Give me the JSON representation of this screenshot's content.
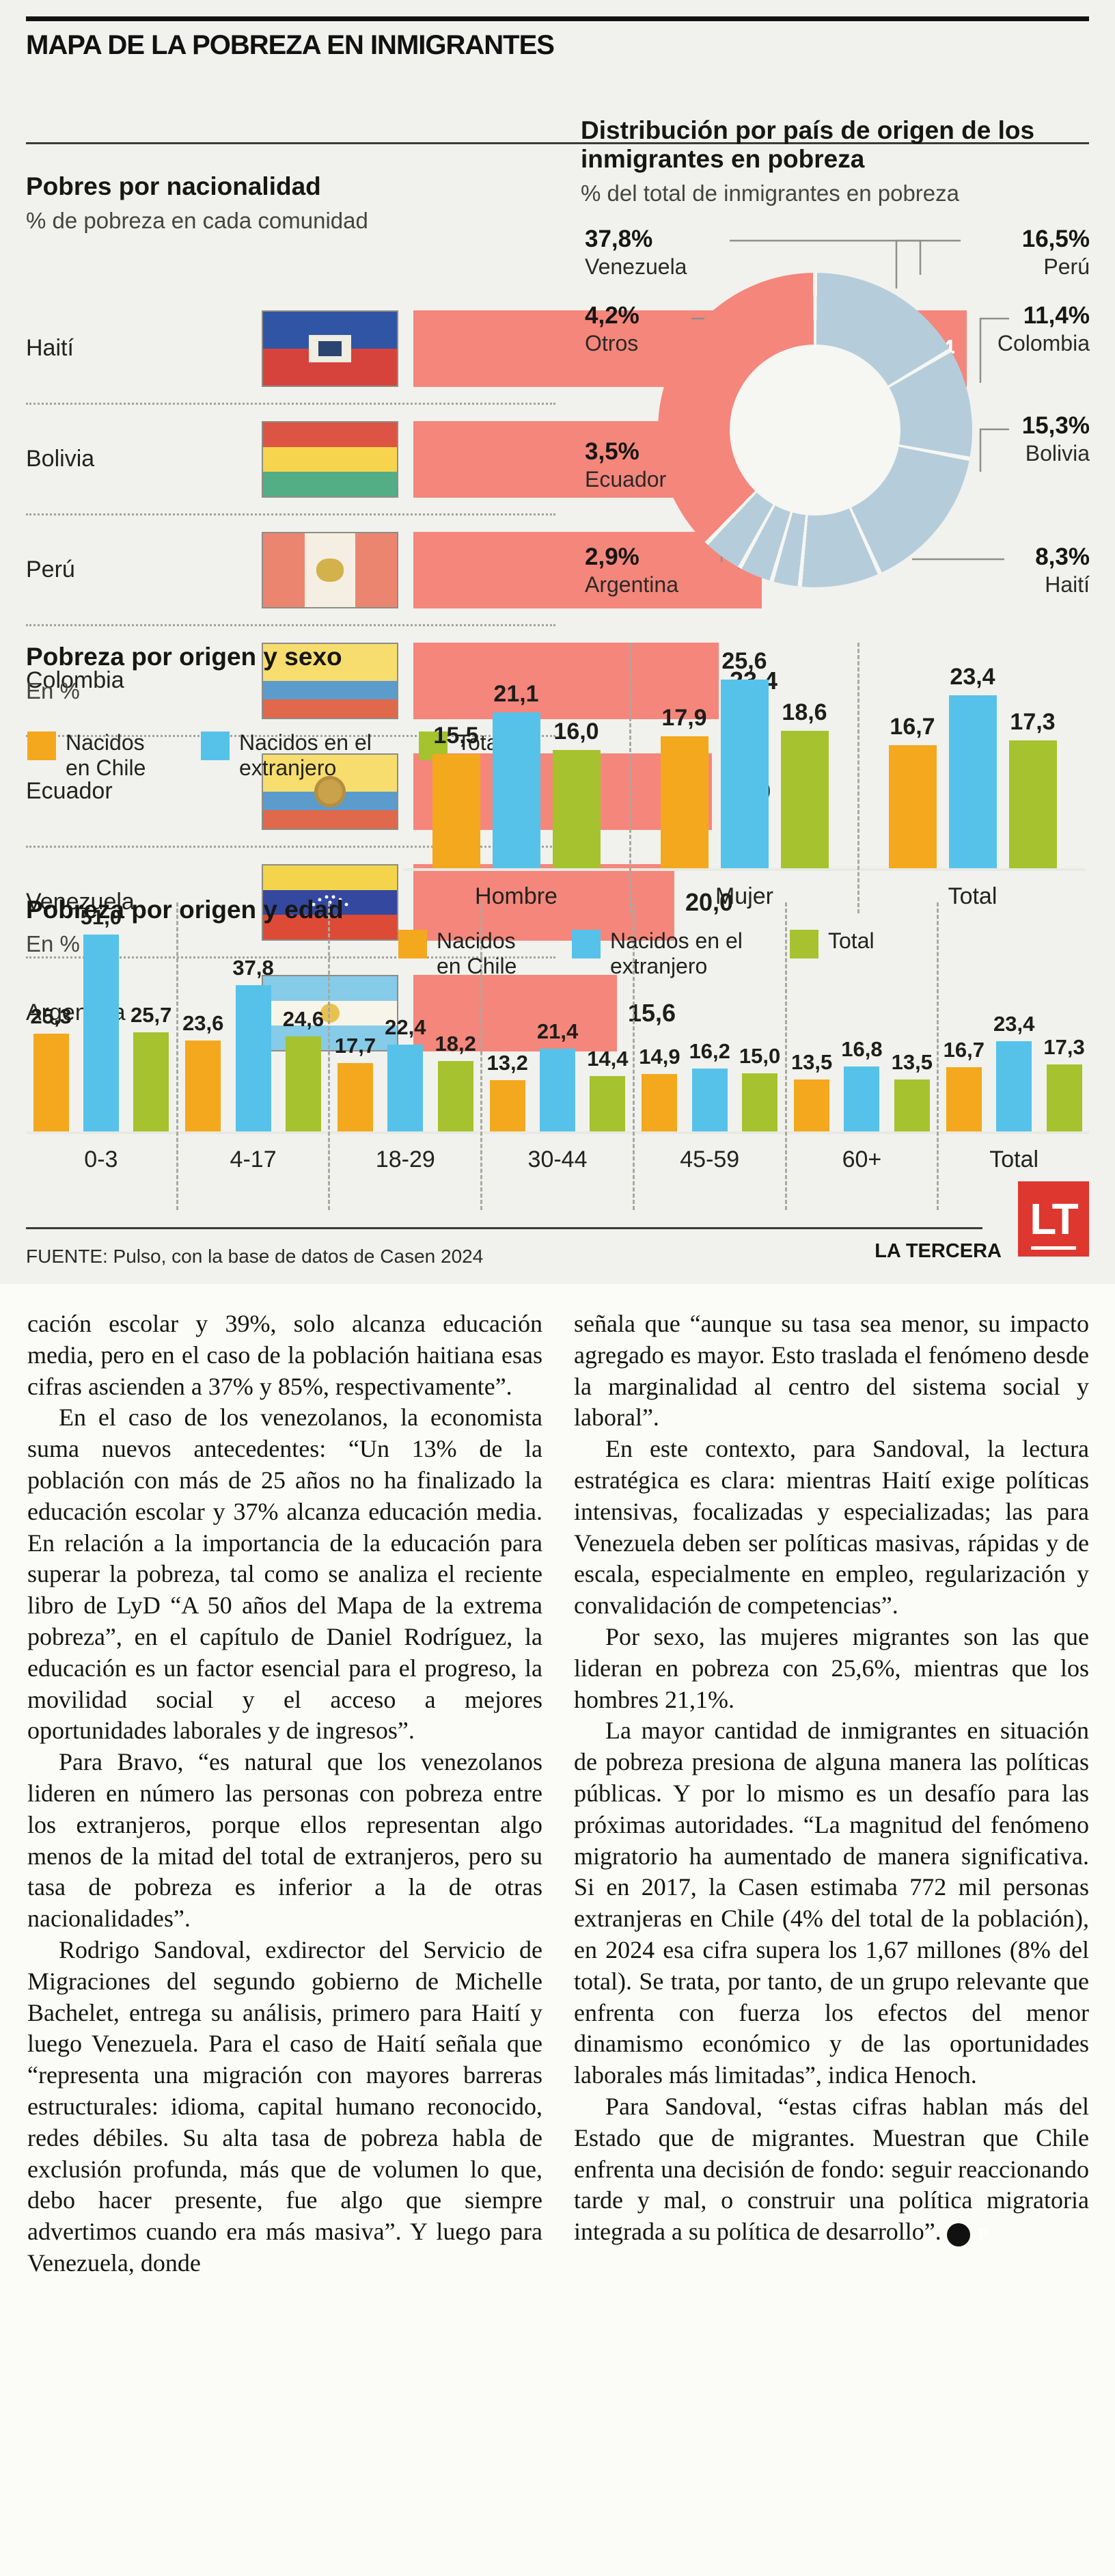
{
  "infographic": {
    "kicker": "MAPA DE LA POBREZA EN INMIGRANTES",
    "flag_keys": [
      "haiti",
      "bolivia",
      "peru",
      "colombia",
      "ecuador",
      "venezuela",
      "argentina"
    ],
    "source": "FUENTE: Pulso, con la base de datos de Casen 2024",
    "brand": "LA TERCERA",
    "logo_text": "LT"
  },
  "colors": {
    "salmon": "#f5867b",
    "slice_gray": "#b5cdda",
    "series": [
      "#f4a81d",
      "#56c2ea",
      "#a6c22e"
    ],
    "brand_red": "#dd3730"
  },
  "chart_data": [
    {
      "type": "bar",
      "orientation": "horizontal",
      "title": "Pobres por nacionalidad",
      "subtitle": "% de pobreza en cada comunidad",
      "categories": [
        "Haití",
        "Bolivia",
        "Perú",
        "Colombia",
        "Ecuador",
        "Venezuela",
        "Argentina"
      ],
      "values": [
        42.4,
        38.6,
        26.7,
        23.4,
        22.9,
        20.0,
        15.6
      ],
      "xlim": [
        0,
        45
      ],
      "grid": false
    },
    {
      "type": "pie",
      "donut": true,
      "title": "Distribución por país de origen de los inmigrantes en pobreza",
      "subtitle": "% del total de inmigrantes en pobreza",
      "labels": [
        "Perú",
        "Colombia",
        "Bolivia",
        "Haití",
        "Argentina",
        "Ecuador",
        "Otros",
        "Venezuela"
      ],
      "values": [
        16.5,
        11.4,
        15.3,
        8.3,
        2.9,
        3.5,
        4.2,
        37.8
      ],
      "highlight_label": "Venezuela",
      "legend_position": "around"
    },
    {
      "type": "bar",
      "title": "Pobreza por origen y sexo",
      "unit": "En %",
      "categories": [
        "Hombre",
        "Mujer",
        "Total"
      ],
      "series": [
        {
          "name": "Nacidos en Chile",
          "values": [
            15.5,
            17.9,
            16.7
          ]
        },
        {
          "name": "Nacidos en el extranjero",
          "values": [
            21.1,
            25.6,
            23.4
          ]
        },
        {
          "name": "Total",
          "values": [
            16.0,
            18.6,
            17.3
          ]
        }
      ],
      "ylim": [
        0,
        28
      ],
      "grid": false
    },
    {
      "type": "bar",
      "title": "Pobreza por origen y edad",
      "unit": "En %",
      "categories": [
        "0-3",
        "4-17",
        "18-29",
        "30-44",
        "45-59",
        "60+",
        "Total"
      ],
      "series": [
        {
          "name": "Nacidos en Chile",
          "values": [
            25.3,
            23.6,
            17.7,
            13.2,
            14.9,
            13.5,
            16.7
          ]
        },
        {
          "name": "Nacidos en el extranjero",
          "values": [
            51.0,
            37.8,
            22.4,
            21.4,
            16.2,
            16.8,
            23.4
          ]
        },
        {
          "name": "Total",
          "values": [
            25.7,
            24.6,
            18.2,
            14.4,
            15.0,
            13.5,
            17.3
          ]
        }
      ],
      "ylim": [
        0,
        55
      ],
      "grid": false
    }
  ],
  "article": {
    "end_mark": "P",
    "columns": [
      {
        "paragraphs": [
          {
            "indent": false,
            "text": "cación escolar y 39%, solo alcanza educación media, pero en el caso de la población haitiana esas cifras ascienden a 37% y 85%, respectivamente”."
          },
          {
            "indent": true,
            "text": "En el caso de los venezolanos, la economista suma nuevos antecedentes: “Un 13% de la población con más de 25 años no ha finalizado la educación escolar y 37% alcanza educación media. En relación a la importancia de la educación para superar la pobreza, tal como se analiza el reciente libro de LyD “A 50 años del Mapa de la extrema pobreza”, en el capítulo de Daniel Rodríguez, la educación es un factor esencial para el progreso, la movilidad social y el acceso a mejores oportunidades laborales y de ingresos”."
          },
          {
            "indent": true,
            "text": "Para Bravo, “es natural que los venezolanos lideren en número las personas con pobreza entre los extranjeros, porque ellos representan algo menos de la mitad del total de extranjeros, pero su tasa de pobreza es inferior a la de otras nacionalidades”."
          },
          {
            "indent": true,
            "text": "Rodrigo Sandoval, exdirector del Servicio de Migraciones del segundo gobierno de Michelle Bachelet, entrega su análisis, primero para Haití y luego Venezuela. Para el caso de Haití señala que “representa una migración con mayores barreras estructurales: idioma, capital humano reconocido, redes débiles. Su alta tasa de pobreza habla de exclusión profunda, más que de volumen lo que, debo hacer presente, fue algo que siempre advertimos cuando era más masiva”. Y luego para Venezuela, donde"
          }
        ]
      },
      {
        "paragraphs": [
          {
            "indent": false,
            "text": "señala que “aunque su tasa sea menor, su impacto agregado es mayor. Esto traslada el fenómeno desde la marginalidad al centro del sistema social y laboral”."
          },
          {
            "indent": true,
            "text": "En este contexto, para Sandoval, la lectura estratégica es clara: mientras Haití exige políticas intensivas, focalizadas y especializadas; las para Venezuela deben ser políticas masivas, rápidas y de escala, especialmente en empleo, regularización y convalidación de competencias”."
          },
          {
            "indent": true,
            "text": "Por sexo, las mujeres migrantes son las que lideran en pobreza con 25,6%, mientras que los hombres 21,1%."
          },
          {
            "indent": true,
            "text": "La mayor cantidad de inmigrantes en situación de pobreza presiona de alguna manera las políticas públicas. Y por lo mismo es un desafío para las próximas autoridades. “La magnitud del fenómeno migratorio ha aumentado de manera significativa. Si en 2017, la Casen estimaba 772 mil personas extranjeras en Chile (4% del total de la población), en 2024 esa cifra supera los 1,67 millones (8% del total). Se trata, por tanto, de un grupo relevante que enfrenta con fuerza los efectos del menor dinamismo económico y de las oportunidades laborales más limitadas”, indica Henoch."
          },
          {
            "indent": true,
            "text": "Para Sandoval, “estas cifras hablan más del Estado que de migrantes. Muestran que Chile enfrenta una decisión de fondo: seguir reaccionando tarde y mal, o construir una política migratoria integrada a su política de desarrollo”."
          }
        ]
      }
    ]
  }
}
